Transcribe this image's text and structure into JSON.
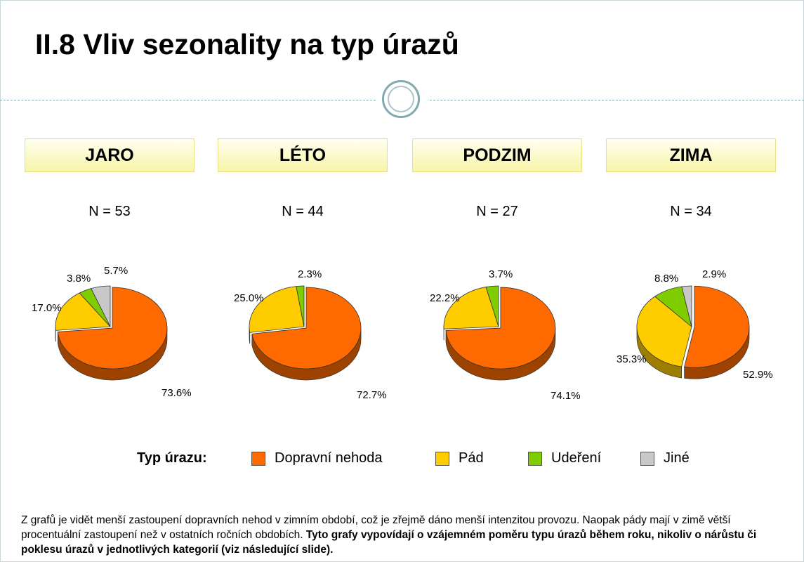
{
  "title": "II.8 Vliv sezonality na typ úrazů",
  "colors": {
    "Dopravní nehoda": "#ff6a00",
    "Pád": "#ffcc00",
    "Udeření": "#7fcc00",
    "Jiné": "#c8c8c8"
  },
  "chart_data": [
    {
      "type": "pie",
      "title": "JARO",
      "subtitle": "N = 53",
      "labels": [
        "Dopravní nehoda",
        "Pád",
        "Udeření",
        "Jiné"
      ],
      "values": [
        73.6,
        17.0,
        3.8,
        5.7
      ],
      "data_labels": [
        "73.6%",
        "17.0%",
        "3.8%",
        "5.7%"
      ]
    },
    {
      "type": "pie",
      "title": "LÉTO",
      "subtitle": "N = 44",
      "labels": [
        "Dopravní nehoda",
        "Pád",
        "Udeření",
        "Jiné"
      ],
      "values": [
        72.7,
        25.0,
        2.3,
        0.0
      ],
      "data_labels": [
        "72.7%",
        "25.0%",
        "2.3%",
        ""
      ]
    },
    {
      "type": "pie",
      "title": "PODZIM",
      "subtitle": "N = 27",
      "labels": [
        "Dopravní nehoda",
        "Pád",
        "Udeření",
        "Jiné"
      ],
      "values": [
        74.1,
        22.2,
        3.7,
        0.0
      ],
      "data_labels": [
        "74.1%",
        "22.2%",
        "3.7%",
        ""
      ]
    },
    {
      "type": "pie",
      "title": "ZIMA",
      "subtitle": "N = 34",
      "labels": [
        "Dopravní nehoda",
        "Pád",
        "Udeření",
        "Jiné"
      ],
      "values": [
        52.9,
        35.3,
        8.8,
        2.9
      ],
      "data_labels": [
        "52.9%",
        "35.3%",
        "8.8%",
        "2.9%"
      ]
    }
  ],
  "legend": {
    "title": "Typ úrazu:",
    "items": [
      {
        "label": "Dopravní nehoda",
        "color": "#ff6a00"
      },
      {
        "label": "Pád",
        "color": "#ffcc00"
      },
      {
        "label": "Udeření",
        "color": "#7fcc00"
      },
      {
        "label": "Jiné",
        "color": "#c8c8c8"
      }
    ]
  },
  "note": {
    "text1": "Z grafů je vidět menší zastoupení dopravních nehod v zimním období, což je zřejmě dáno menší intenzitou provozu. Naopak pády mají v zimě větší procentuální zastoupení než v ostatních ročních obdobích. ",
    "text2_bold": "Tyto grafy vypovídají o vzájemném poměru typu úrazů během roku, nikoliv o nárůstu či poklesu úrazů v jednotlivých kategorií (viz následující slide)."
  }
}
